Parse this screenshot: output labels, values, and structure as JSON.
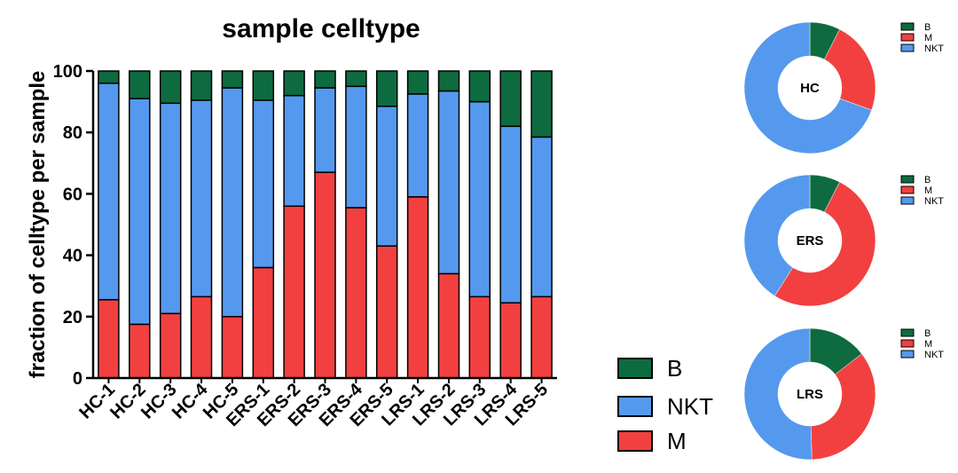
{
  "chart_data": [
    {
      "type": "bar",
      "stacked": true,
      "title": "sample celltype",
      "xlabel": "",
      "ylabel": "fraction of celltype per sample",
      "ylim": [
        0,
        100
      ],
      "yticks": [
        0,
        20,
        40,
        60,
        80,
        100
      ],
      "categories": [
        "HC-1",
        "HC-2",
        "HC-3",
        "HC-4",
        "HC-5",
        "ERS-1",
        "ERS-2",
        "ERS-3",
        "ERS-4",
        "ERS-5",
        "LRS-1",
        "LRS-2",
        "LRS-3",
        "LRS-4",
        "LRS-5"
      ],
      "series": [
        {
          "name": "M",
          "color": "#f24040",
          "values": [
            25.5,
            17.5,
            21,
            26.5,
            20,
            36,
            56,
            67,
            55.5,
            43,
            59,
            34,
            26.5,
            24.5,
            26.5
          ]
        },
        {
          "name": "NKT",
          "color": "#5599ee",
          "values": [
            70.5,
            73.5,
            68.5,
            64,
            74.5,
            54.5,
            36,
            27.5,
            39.5,
            45.5,
            33.5,
            59.5,
            63.5,
            57.5,
            52
          ]
        },
        {
          "name": "B",
          "color": "#0e6b40",
          "values": [
            4,
            9,
            10.5,
            9.5,
            5.5,
            9.5,
            8,
            5.5,
            5,
            11.5,
            7.5,
            6.5,
            10,
            18,
            21.5
          ]
        }
      ],
      "legend": {
        "position": "bottom-right",
        "entries": [
          "B",
          "NKT",
          "M"
        ]
      }
    },
    {
      "type": "pie",
      "variant": "donut",
      "label": "HC",
      "categories": [
        "B",
        "M",
        "NKT"
      ],
      "colors": [
        "#0e6b40",
        "#f24040",
        "#5599ee"
      ],
      "values": [
        7.5,
        23,
        69.5
      ],
      "legend": {
        "position": "top-right",
        "entries": [
          "B",
          "M",
          "NKT"
        ]
      }
    },
    {
      "type": "pie",
      "variant": "donut",
      "label": "ERS",
      "categories": [
        "B",
        "M",
        "NKT"
      ],
      "colors": [
        "#0e6b40",
        "#f24040",
        "#5599ee"
      ],
      "values": [
        7.5,
        51.5,
        41
      ],
      "legend": {
        "position": "top-right",
        "entries": [
          "B",
          "M",
          "NKT"
        ]
      }
    },
    {
      "type": "pie",
      "variant": "donut",
      "label": "LRS",
      "categories": [
        "B",
        "M",
        "NKT"
      ],
      "colors": [
        "#0e6b40",
        "#f24040",
        "#5599ee"
      ],
      "values": [
        14.5,
        35,
        50.5
      ],
      "legend": {
        "position": "top-right",
        "entries": [
          "B",
          "M",
          "NKT"
        ]
      }
    }
  ]
}
